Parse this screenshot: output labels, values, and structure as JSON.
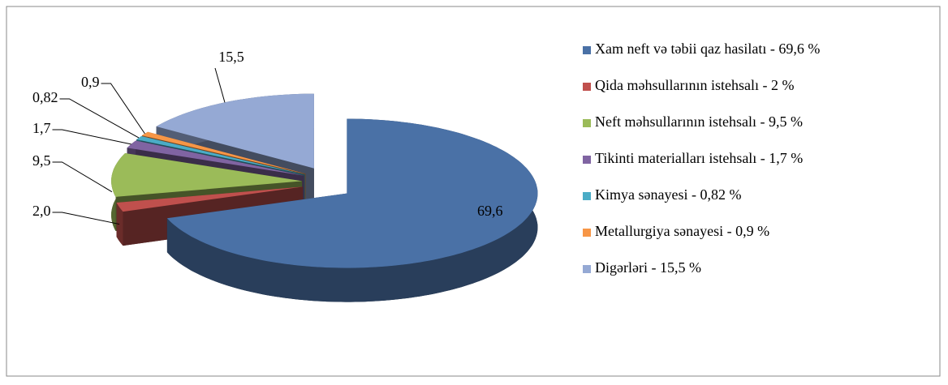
{
  "chart_data": {
    "type": "pie",
    "categories": [
      "Xam neft və təbii qaz hasilatı - 69,6 %",
      "Qida məhsullarının istehsalı - 2 %",
      "Neft məhsullarının istehsalı - 9,5 %",
      "Tikinti materialları istehsalı - 1,7 %",
      "Kimya sənayesi  - 0,82 %",
      "Metallurgiya sənayesi  - 0,9 %",
      "Digərləri - 15,5 %"
    ],
    "values": [
      69.6,
      2.0,
      9.5,
      1.7,
      0.82,
      0.9,
      15.5
    ],
    "value_labels": [
      "69,6",
      "2,0",
      "9,5",
      "1,7",
      "0,82",
      "0,9",
      "15,5"
    ],
    "colors": [
      "#4a71a6",
      "#c0504d",
      "#9bbb59",
      "#8064a2",
      "#4bacc6",
      "#f79646",
      "#95a9d4"
    ],
    "legend": "right"
  }
}
